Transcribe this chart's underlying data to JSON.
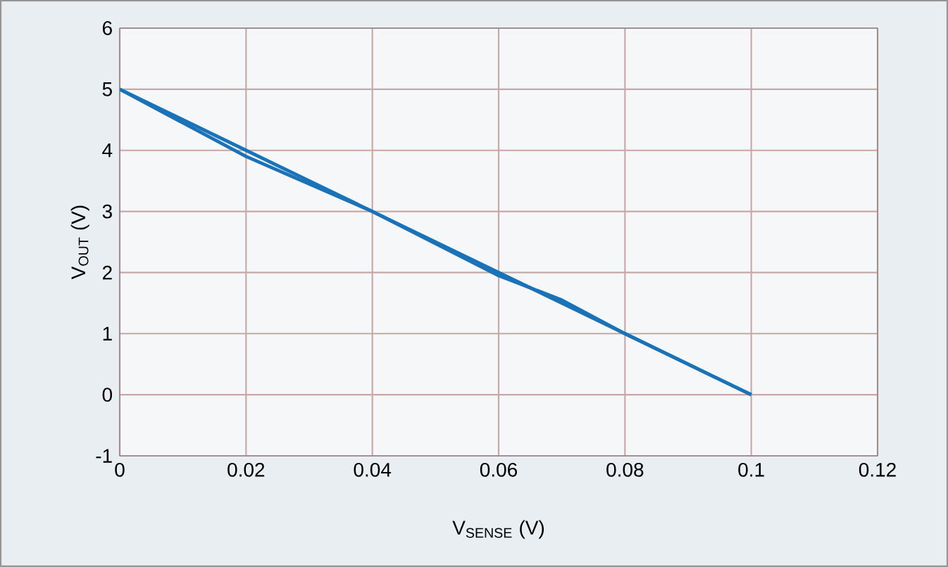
{
  "chart_data": {
    "type": "line",
    "xlabel": "V$_{SENSE}$ (V)",
    "ylabel": "V$_{OUT}$ (V)",
    "series": [
      {
        "color": "#1a72b8",
        "x": [
          0,
          0.1
        ],
        "values": [
          5,
          0
        ]
      },
      {
        "color": "#1a72b8",
        "x": [
          0,
          0.02,
          0.04,
          0.06,
          0.07,
          0.08,
          0.1
        ],
        "values": [
          5,
          3.9,
          3.0,
          1.95,
          1.55,
          1.0,
          0
        ]
      }
    ],
    "xlim": [
      0,
      0.12
    ],
    "xticks": [
      0,
      0.02,
      0.04,
      0.06,
      0.08,
      0.1,
      0.12
    ],
    "ylim": [
      -1,
      6
    ],
    "yticks": [
      -1,
      0,
      1,
      2,
      3,
      4,
      5,
      6
    ],
    "grid": true,
    "marker": "none",
    "line_style": "solid"
  }
}
